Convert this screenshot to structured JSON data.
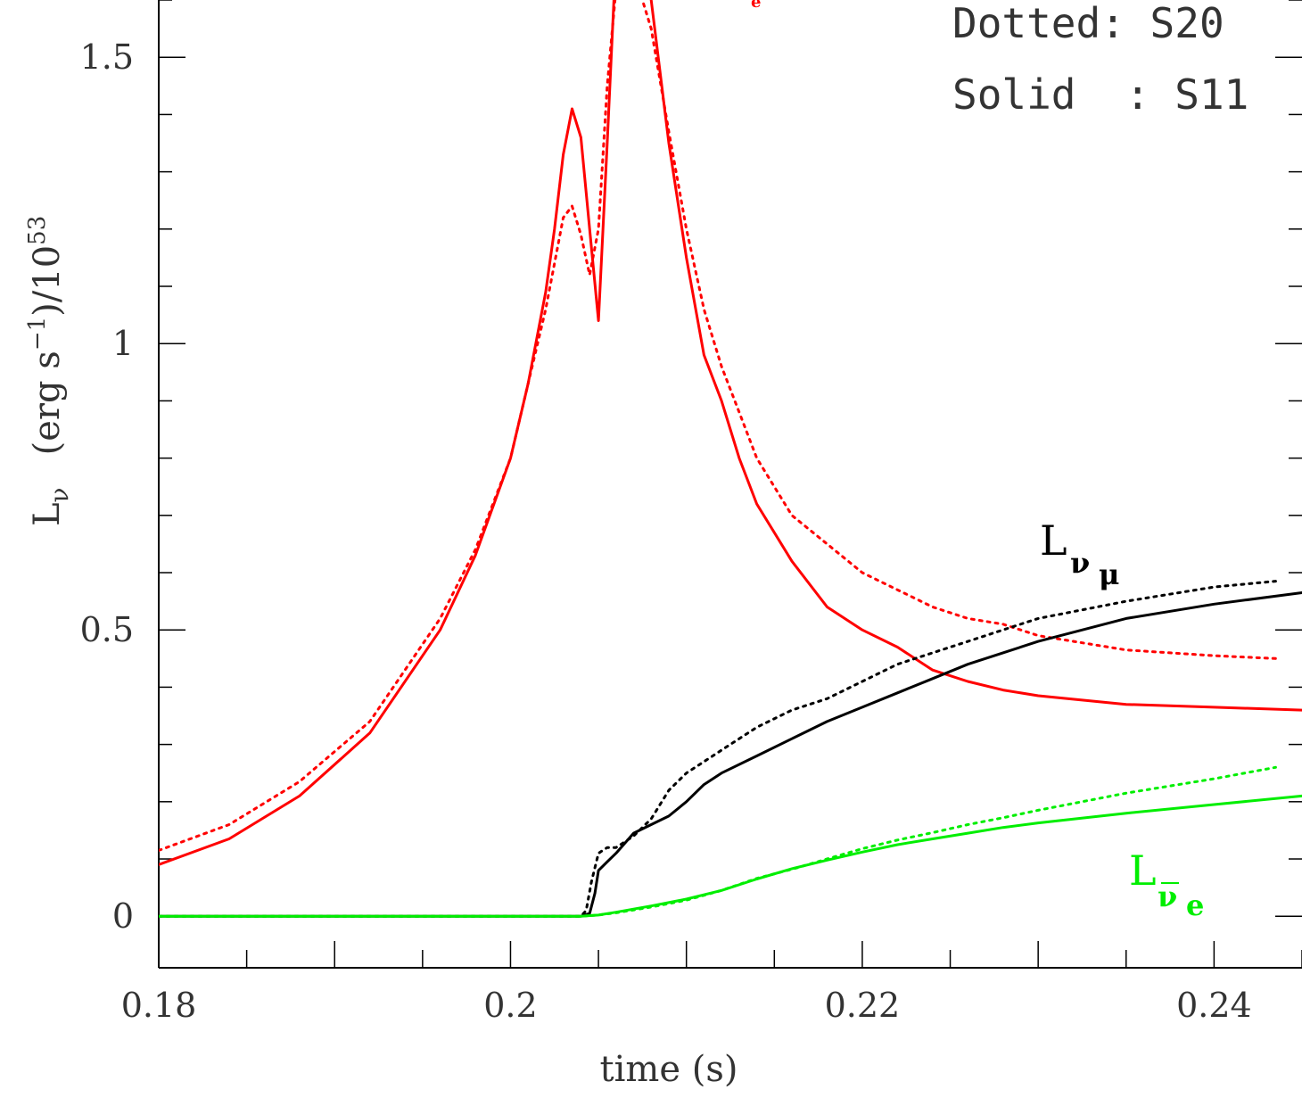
{
  "chart_data": {
    "type": "line",
    "xlabel": "time (s)",
    "ylabel": "L_ν (erg s^-1)/10^53",
    "ylabel_parts": {
      "main": "L",
      "sub": "ν",
      "units": "(erg s",
      "exp1": "−1",
      "close": ")/10",
      "exp2": "53"
    },
    "xlim": [
      0.18,
      0.245
    ],
    "ylim": [
      -0.09,
      1.6
    ],
    "x_ticks": [
      0.18,
      0.2,
      0.22,
      0.24
    ],
    "x_tick_labels": [
      "0.18",
      "0.2",
      "0.22",
      "0.24"
    ],
    "y_ticks": [
      0,
      0.5,
      1,
      1.5
    ],
    "y_tick_labels": [
      "0",
      "0.5",
      "1",
      "1.5"
    ],
    "legend": [
      {
        "text": "Dotted: S20",
        "style": "dotted"
      },
      {
        "text": "Solid  : S11",
        "style": "solid"
      }
    ],
    "colors": {
      "nu_e": "#ff0000",
      "nu_mu": "#000000",
      "antinu_e": "#00ee00"
    },
    "series_labels": [
      {
        "id": "nu_mu",
        "main": "L",
        "sub": "ν μ",
        "color": "#000000"
      },
      {
        "id": "antinu_e",
        "main": "L",
        "sub": "ν e",
        "color": "#00ee00"
      }
    ],
    "series": [
      {
        "id": "nu_e_S11",
        "color": "#ff0000",
        "style": "solid",
        "x": [
          0.18,
          0.184,
          0.188,
          0.192,
          0.196,
          0.198,
          0.2,
          0.201,
          0.202,
          0.2025,
          0.203,
          0.2035,
          0.204,
          0.2045,
          0.205,
          0.2055,
          0.206,
          0.207,
          0.208,
          0.209,
          0.21,
          0.211,
          0.212,
          0.213,
          0.214,
          0.216,
          0.218,
          0.22,
          0.222,
          0.224,
          0.226,
          0.228,
          0.23,
          0.235,
          0.24,
          0.245
        ],
        "y": [
          0.09,
          0.135,
          0.21,
          0.32,
          0.5,
          0.63,
          0.8,
          0.93,
          1.09,
          1.2,
          1.33,
          1.41,
          1.36,
          1.2,
          1.04,
          1.35,
          1.68,
          1.75,
          1.6,
          1.35,
          1.15,
          0.98,
          0.9,
          0.8,
          0.72,
          0.62,
          0.54,
          0.5,
          0.47,
          0.43,
          0.41,
          0.395,
          0.385,
          0.37,
          0.365,
          0.36
        ]
      },
      {
        "id": "nu_e_S20",
        "color": "#ff0000",
        "style": "dotted",
        "x": [
          0.18,
          0.184,
          0.188,
          0.192,
          0.196,
          0.198,
          0.2,
          0.201,
          0.202,
          0.2025,
          0.203,
          0.2035,
          0.204,
          0.2045,
          0.205,
          0.2055,
          0.206,
          0.207,
          0.208,
          0.209,
          0.21,
          0.211,
          0.212,
          0.213,
          0.214,
          0.216,
          0.218,
          0.22,
          0.222,
          0.224,
          0.226,
          0.228,
          0.23,
          0.235,
          0.24,
          0.2435
        ],
        "y": [
          0.115,
          0.16,
          0.235,
          0.34,
          0.52,
          0.64,
          0.8,
          0.93,
          1.06,
          1.14,
          1.22,
          1.24,
          1.19,
          1.12,
          1.2,
          1.45,
          1.62,
          1.65,
          1.55,
          1.37,
          1.2,
          1.06,
          0.96,
          0.88,
          0.8,
          0.7,
          0.65,
          0.6,
          0.57,
          0.54,
          0.52,
          0.51,
          0.49,
          0.465,
          0.455,
          0.45
        ]
      },
      {
        "id": "nu_mu_S11",
        "color": "#000000",
        "style": "solid",
        "x": [
          0.18,
          0.2,
          0.204,
          0.2045,
          0.2048,
          0.205,
          0.2055,
          0.206,
          0.207,
          0.208,
          0.209,
          0.21,
          0.211,
          0.212,
          0.214,
          0.216,
          0.218,
          0.22,
          0.222,
          0.224,
          0.226,
          0.228,
          0.23,
          0.235,
          0.24,
          0.245
        ],
        "y": [
          0,
          0,
          0,
          0.005,
          0.04,
          0.08,
          0.095,
          0.11,
          0.145,
          0.16,
          0.175,
          0.2,
          0.23,
          0.25,
          0.28,
          0.31,
          0.34,
          0.365,
          0.39,
          0.415,
          0.44,
          0.46,
          0.48,
          0.52,
          0.545,
          0.565
        ]
      },
      {
        "id": "nu_mu_S20",
        "color": "#000000",
        "style": "dotted",
        "x": [
          0.18,
          0.2,
          0.204,
          0.2043,
          0.2046,
          0.205,
          0.2055,
          0.206,
          0.207,
          0.208,
          0.209,
          0.21,
          0.211,
          0.212,
          0.214,
          0.216,
          0.218,
          0.22,
          0.222,
          0.224,
          0.226,
          0.228,
          0.23,
          0.235,
          0.24,
          0.2435
        ],
        "y": [
          0,
          0,
          0,
          0.01,
          0.06,
          0.11,
          0.12,
          0.12,
          0.14,
          0.17,
          0.22,
          0.25,
          0.27,
          0.29,
          0.33,
          0.36,
          0.38,
          0.41,
          0.44,
          0.46,
          0.48,
          0.5,
          0.52,
          0.55,
          0.575,
          0.585
        ]
      },
      {
        "id": "antinu_e_S11",
        "color": "#00ee00",
        "style": "solid",
        "x": [
          0.18,
          0.2,
          0.204,
          0.205,
          0.206,
          0.208,
          0.21,
          0.212,
          0.214,
          0.216,
          0.218,
          0.22,
          0.222,
          0.224,
          0.226,
          0.228,
          0.23,
          0.235,
          0.24,
          0.245
        ],
        "y": [
          0,
          0,
          0,
          0.002,
          0.007,
          0.018,
          0.03,
          0.045,
          0.065,
          0.083,
          0.098,
          0.112,
          0.125,
          0.135,
          0.145,
          0.155,
          0.163,
          0.18,
          0.195,
          0.21
        ]
      },
      {
        "id": "antinu_e_S20",
        "color": "#00ee00",
        "style": "dotted",
        "x": [
          0.18,
          0.2,
          0.204,
          0.205,
          0.206,
          0.208,
          0.21,
          0.212,
          0.214,
          0.216,
          0.218,
          0.22,
          0.222,
          0.224,
          0.226,
          0.228,
          0.23,
          0.235,
          0.24,
          0.2435
        ],
        "y": [
          0,
          0,
          0,
          0.002,
          0.006,
          0.016,
          0.028,
          0.045,
          0.066,
          0.082,
          0.1,
          0.118,
          0.133,
          0.146,
          0.16,
          0.172,
          0.185,
          0.215,
          0.24,
          0.26
        ]
      }
    ]
  }
}
